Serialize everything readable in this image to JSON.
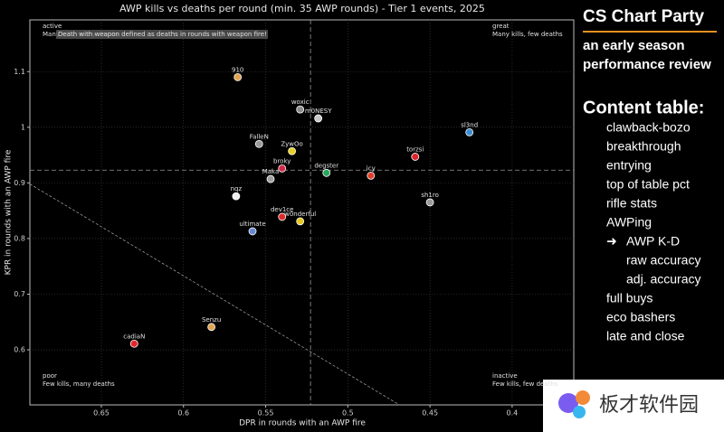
{
  "chart_data": {
    "type": "scatter",
    "title": "AWP kills vs deaths per round (min. 35 AWP rounds) - Tier 1 events, 2025",
    "xlabel": "DPR in rounds with an AWP fire",
    "ylabel": "KPR in rounds with an AWP fire",
    "xlim": [
      0.6935,
      0.3625
    ],
    "ylim": [
      0.501,
      1.193
    ],
    "xticks": [
      0.65,
      0.6,
      0.55,
      0.5,
      0.45,
      0.4
    ],
    "yticks": [
      0.6,
      0.7,
      0.8,
      0.9,
      1.0,
      1.1
    ],
    "grid": true,
    "labels": [
      "910",
      "woxic",
      "m0NESY",
      "sl3nd",
      "FalleN",
      "ZywOo",
      "torzsi",
      "broky",
      "degster",
      "icy",
      "Maka",
      "nqz",
      "sh1ro",
      "dev1ce",
      "w0nderful",
      "ultimate",
      "Senzu",
      "cadiaN"
    ],
    "x": [
      0.567,
      0.529,
      0.518,
      0.426,
      0.554,
      0.534,
      0.459,
      0.54,
      0.513,
      0.486,
      0.547,
      0.568,
      0.45,
      0.54,
      0.529,
      0.558,
      0.583,
      0.63
    ],
    "y": [
      1.09,
      1.032,
      1.016,
      0.991,
      0.97,
      0.957,
      0.947,
      0.926,
      0.918,
      0.913,
      0.907,
      0.876,
      0.865,
      0.839,
      0.831,
      0.813,
      0.641,
      0.611
    ],
    "colors": [
      "#e0a452",
      "#8c8c8c",
      "#c8c8c8",
      "#3d8fd1",
      "#9a9a9a",
      "#e6d21e",
      "#d9262b",
      "#d42a4a",
      "#27a65c",
      "#e0402a",
      "#a0a0a0",
      "#f0f0f0",
      "#9a9a9a",
      "#e02a2a",
      "#e6c81e",
      "#6a8ad0",
      "#e0a452",
      "#e0262b"
    ],
    "vline": 0.5227,
    "hline": 0.923,
    "reference_line": {
      "x": [
        0.6935,
        0.4686
      ],
      "y": [
        0.898,
        0.501
      ]
    },
    "note": "Death with weapon defined as deaths in rounds with weapon fire!",
    "corners": [
      {
        "title": "active",
        "text": "Many kills, many deaths"
      },
      {
        "title": "great",
        "text": "Many kills, few deaths"
      },
      {
        "title": "poor",
        "text": "Few kills, many deaths"
      },
      {
        "title": "inactive",
        "text": "Few kills, few deaths"
      }
    ]
  },
  "sidebar": {
    "title": "CS Chart Party",
    "subtitle": [
      "an early season",
      "performance review"
    ],
    "toc_title": "Content table:",
    "items": [
      "clawback-bozo",
      "breakthrough",
      "entrying",
      "top of table pct",
      "rifle stats",
      "AWPing"
    ],
    "current": {
      "marker": "➜",
      "text": "AWP K-D",
      "children": [
        "raw accuracy",
        "adj. accuracy"
      ]
    },
    "items_after": [
      "full buys",
      "eco bashers",
      "late and close"
    ]
  },
  "watermark": "板才软件园"
}
